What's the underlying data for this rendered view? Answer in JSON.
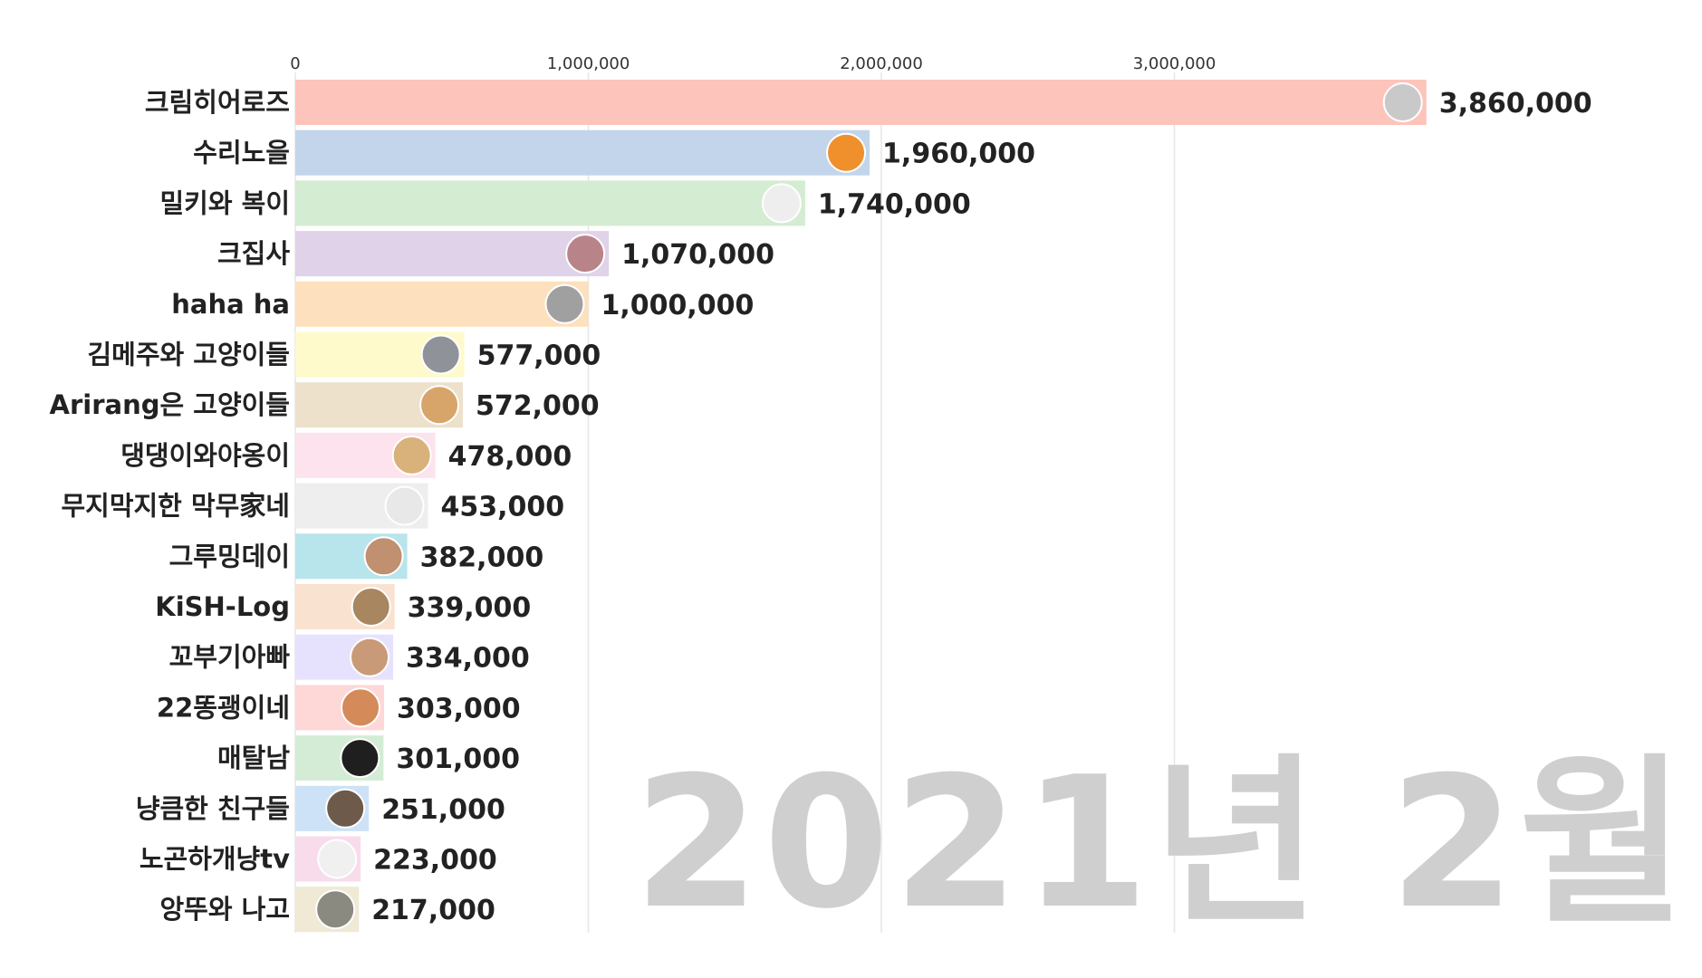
{
  "chart_data": {
    "type": "bar",
    "orientation": "horizontal",
    "period": "2021년 2월",
    "categories": [
      "크림히어로즈",
      "수리노을",
      "밀키와 복이",
      "크집사",
      "haha ha",
      "김메주와 고양이들",
      "Arirang은 고양이들",
      "댕댕이와야옹이",
      "무지막지한 막무家네",
      "그루밍데이",
      "KiSH-Log",
      "꼬부기아빠",
      "22똥괭이네",
      "매탈남",
      "냥큼한 친구들",
      "노곤하개냥tv",
      "앙뚜와 나고"
    ],
    "values": [
      3860000,
      1960000,
      1740000,
      1070000,
      1000000,
      577000,
      572000,
      478000,
      453000,
      382000,
      339000,
      334000,
      303000,
      301000,
      251000,
      223000,
      217000
    ],
    "value_labels": [
      "3,860,000",
      "1,960,000",
      "1,740,000",
      "1,070,000",
      "1,000,000",
      "577,000",
      "572,000",
      "478,000",
      "453,000",
      "382,000",
      "339,000",
      "334,000",
      "303,000",
      "301,000",
      "251,000",
      "223,000",
      "217,000"
    ],
    "xlim": [
      0,
      3860000
    ],
    "xticks": [
      0,
      1000000,
      2000000,
      3000000
    ],
    "xtick_labels": [
      "0",
      "1,000,000",
      "2,000,000",
      "3,000,000"
    ],
    "grid": true,
    "colors": [
      "#fdc4bb",
      "#c2d5ea",
      "#d4ecd2",
      "#e0d2e8",
      "#fde0bd",
      "#fefacb",
      "#ede1cc",
      "#fde3ee",
      "#eeeeee",
      "#b8e4ec",
      "#fae2d0",
      "#e6e2fe",
      "#fed7d7",
      "#d4ecd5",
      "#cde2f6",
      "#f8dcec",
      "#efe9d5"
    ],
    "avatar_colors": [
      "#c9c9c9",
      "#f0902c",
      "#eeeeee",
      "#b8848a",
      "#a0a0a0",
      "#8f9399",
      "#d7a46a",
      "#d8b27a",
      "#e8e8e8",
      "#c09070",
      "#a88660",
      "#c89a78",
      "#d58a5a",
      "#1f1f1f",
      "#6e5a4a",
      "#f0f0f0",
      "#8a8a80"
    ]
  }
}
